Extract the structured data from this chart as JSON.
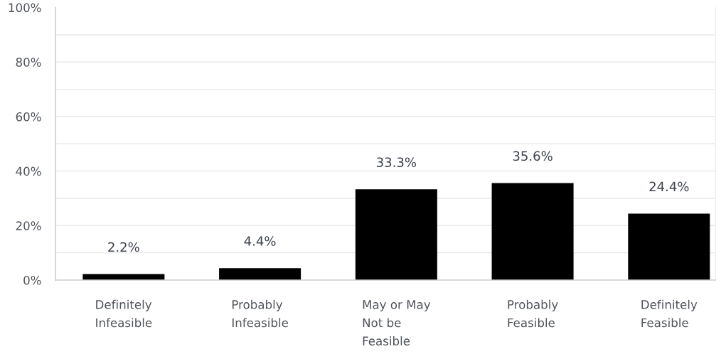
{
  "chart_data": {
    "type": "bar",
    "categories": [
      "Definitely\nInfeasible",
      "Probably\nInfeasible",
      "May or May\nNot be\nFeasible",
      "Probably\nFeasible",
      "Definitely\nFeasible"
    ],
    "values": [
      2.2,
      4.4,
      33.3,
      35.6,
      24.4
    ],
    "value_labels": [
      "2.2%",
      "4.4%",
      "33.3%",
      "35.6%",
      "24.4%"
    ],
    "color": "#000000",
    "ylim": [
      0,
      100
    ],
    "yticks": [
      {
        "value": 0,
        "label": "0%"
      },
      {
        "value": 10,
        "label": null
      },
      {
        "value": 20,
        "label": "20%"
      },
      {
        "value": 30,
        "label": null
      },
      {
        "value": 40,
        "label": "40%"
      },
      {
        "value": 50,
        "label": null
      },
      {
        "value": 60,
        "label": "60%"
      },
      {
        "value": 70,
        "label": null
      },
      {
        "value": 80,
        "label": "80%"
      },
      {
        "value": 90,
        "label": null
      },
      {
        "value": 100,
        "label": "100%"
      }
    ],
    "grid": "y"
  }
}
